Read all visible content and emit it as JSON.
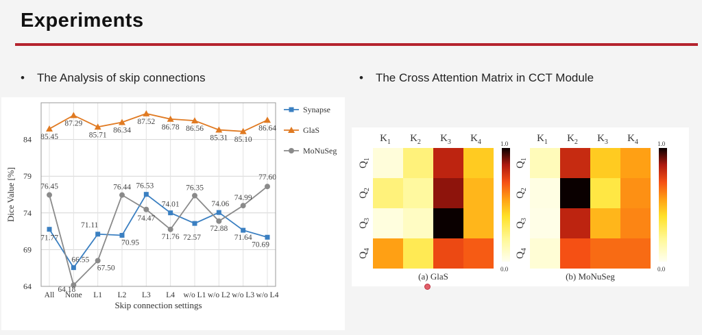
{
  "slide": {
    "title": "Experiments",
    "bullet_left": "The Analysis of skip connections",
    "bullet_right": "The Cross Attention Matrix in CCT Module",
    "bullet_glyph": "•"
  },
  "chart_data": [
    {
      "type": "line",
      "xlabel": "Skip connection settings",
      "ylabel": "Dice Value [%]",
      "categories": [
        "All",
        "None",
        "L1",
        "L2",
        "L3",
        "L4",
        "w/o L1",
        "w/o L2",
        "w/o L3",
        "w/o L4"
      ],
      "ylim": [
        64,
        89
      ],
      "yticks": [
        64,
        69,
        74,
        79,
        84
      ],
      "grid": true,
      "legend": "right",
      "series": [
        {
          "name": "Synapse",
          "color": "#3a7fc1",
          "marker": "square",
          "values": [
            71.77,
            66.55,
            71.11,
            70.95,
            76.53,
            74.01,
            72.57,
            74.06,
            71.64,
            70.69
          ],
          "labels": [
            "71.77",
            "66.55",
            "71.11",
            "70.95",
            "76.53",
            "74.01",
            "72.57",
            "74.06",
            "71.64",
            "70.69"
          ]
        },
        {
          "name": "GlaS",
          "color": "#e07a22",
          "marker": "triangle",
          "values": [
            85.45,
            87.29,
            85.71,
            86.34,
            87.52,
            86.78,
            86.56,
            85.31,
            85.1,
            86.64
          ],
          "labels": [
            "85.45",
            "87.29",
            "85.71",
            "86.34",
            "87.52",
            "86.78",
            "86.56",
            "85.31",
            "85.10",
            "86.64"
          ]
        },
        {
          "name": "MoNuSeg",
          "color": "#8a8a8a",
          "marker": "circle",
          "values": [
            76.45,
            64.18,
            67.5,
            76.44,
            74.47,
            71.76,
            76.35,
            72.88,
            74.99,
            77.6
          ],
          "labels": [
            "76.45",
            "64.18",
            "67.50",
            "76.44",
            "74.47",
            "71.76",
            "76.35",
            "72.88",
            "74.99",
            "77.60"
          ]
        }
      ]
    },
    {
      "type": "heatmap",
      "title": "(a) GlaS",
      "x_labels": [
        "K1",
        "K2",
        "K3",
        "K4"
      ],
      "y_labels": [
        "Q1",
        "Q2",
        "Q3",
        "Q4"
      ],
      "colorbar_range": [
        "0.0",
        "1.0"
      ],
      "values": [
        [
          0.05,
          0.25,
          0.82,
          0.45
        ],
        [
          0.25,
          0.18,
          0.88,
          0.5
        ],
        [
          0.04,
          0.1,
          1.0,
          0.5
        ],
        [
          0.55,
          0.32,
          0.72,
          0.68
        ]
      ]
    },
    {
      "type": "heatmap",
      "title": "(b) MoNuSeg",
      "x_labels": [
        "K1",
        "K2",
        "K3",
        "K4"
      ],
      "y_labels": [
        "Q1",
        "Q2",
        "Q3",
        "Q4"
      ],
      "colorbar_range": [
        "0.0",
        "1.0"
      ],
      "values": [
        [
          0.12,
          0.8,
          0.45,
          0.55
        ],
        [
          0.03,
          1.0,
          0.35,
          0.58
        ],
        [
          0.02,
          0.82,
          0.5,
          0.6
        ],
        [
          0.06,
          0.7,
          0.65,
          0.65
        ]
      ]
    }
  ]
}
